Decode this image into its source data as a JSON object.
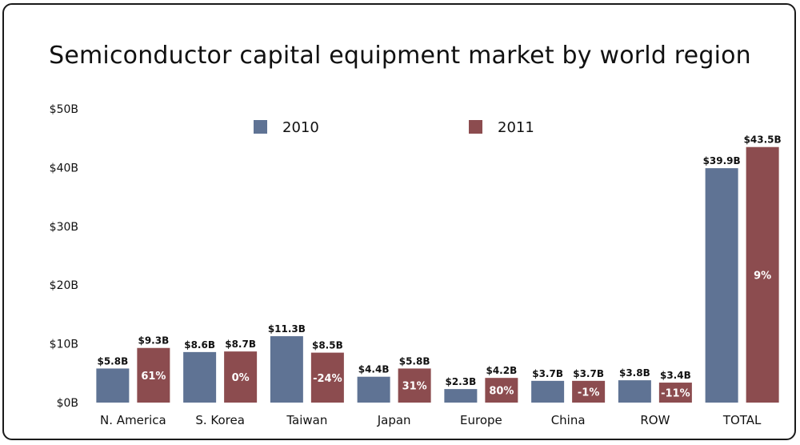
{
  "chart_data": {
    "type": "bar",
    "title": "Semiconductor capital equipment market by world region",
    "categories": [
      "N. America",
      "S. Korea",
      "Taiwan",
      "Japan",
      "Europe",
      "China",
      "ROW",
      "TOTAL"
    ],
    "series": [
      {
        "name": "2010",
        "color": "#5f7394",
        "values": [
          5.8,
          8.6,
          11.3,
          4.4,
          2.3,
          3.7,
          3.8,
          39.9
        ],
        "labels": [
          "$5.8B",
          "$8.6B",
          "$11.3B",
          "$4.4B",
          "$2.3B",
          "$3.7B",
          "$3.8B",
          "$39.9B"
        ]
      },
      {
        "name": "2011",
        "color": "#8c4c4f",
        "values": [
          9.3,
          8.7,
          8.5,
          5.8,
          4.2,
          3.7,
          3.4,
          43.5
        ],
        "labels": [
          "$9.3B",
          "$8.7B",
          "$8.5B",
          "$5.8B",
          "$4.2B",
          "$3.7B",
          "$3.4B",
          "$43.5B"
        ]
      }
    ],
    "growth_labels": [
      "61%",
      "0%",
      "-24%",
      "31%",
      "80%",
      "-1%",
      "-11%",
      "9%"
    ],
    "yticks": [
      "$0B",
      "$10B",
      "$20B",
      "$30B",
      "$40B",
      "$50B"
    ],
    "ytick_values": [
      0,
      10,
      20,
      30,
      40,
      50
    ],
    "ylim": [
      0,
      50
    ],
    "grid": false,
    "legend_position": "top"
  }
}
